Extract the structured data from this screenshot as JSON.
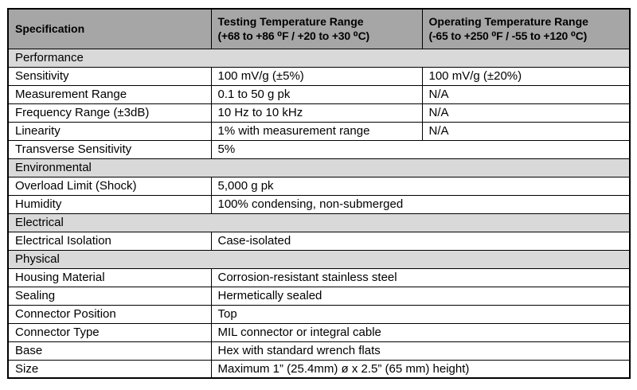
{
  "colors": {
    "header_bg": "#a6a6a6",
    "section_bg": "#d9d9d9",
    "border": "#000000",
    "text": "#000000",
    "page_bg": "#ffffff"
  },
  "table": {
    "header": [
      {
        "title": "Specification",
        "subtitle": ""
      },
      {
        "title": "Testing Temperature Range",
        "subtitle": "(+68 to +86 ⁰F / +20 to +30 ⁰C)"
      },
      {
        "title": "Operating Temperature Range",
        "subtitle": "(-65 to +250 ⁰F / -55 to +120 ⁰C)"
      }
    ],
    "sections": [
      {
        "name": "Performance",
        "rows": [
          {
            "spec": "Sensitivity",
            "values": [
              "100 mV/g (±5%)",
              "100 mV/g (±20%)"
            ]
          },
          {
            "spec": "Measurement Range",
            "values": [
              "0.1 to 50 g pk",
              "N/A"
            ]
          },
          {
            "spec": "Frequency Range (±3dB)",
            "values": [
              "10 Hz to 10 kHz",
              "N/A"
            ]
          },
          {
            "spec": "Linearity",
            "values": [
              "1% with measurement range",
              "N/A"
            ]
          },
          {
            "spec": "Transverse Sensitivity",
            "values": [
              "5%"
            ]
          }
        ]
      },
      {
        "name": "Environmental",
        "rows": [
          {
            "spec": "Overload Limit (Shock)",
            "values": [
              "5,000 g pk"
            ]
          },
          {
            "spec": "Humidity",
            "values": [
              "100% condensing, non-submerged"
            ]
          }
        ]
      },
      {
        "name": "Electrical",
        "rows": [
          {
            "spec": "Electrical Isolation",
            "values": [
              "Case-isolated"
            ]
          }
        ]
      },
      {
        "name": "Physical",
        "rows": [
          {
            "spec": "Housing Material",
            "values": [
              "Corrosion-resistant stainless steel"
            ]
          },
          {
            "spec": "Sealing",
            "values": [
              "Hermetically sealed"
            ]
          },
          {
            "spec": "Connector Position",
            "values": [
              "Top"
            ]
          },
          {
            "spec": "Connector Type",
            "values": [
              "MIL connector or integral cable"
            ]
          },
          {
            "spec": "Base",
            "values": [
              "Hex with standard wrench flats"
            ]
          },
          {
            "spec": "Size",
            "values": [
              "Maximum 1” (25.4mm) ø x 2.5” (65 mm) height)"
            ]
          }
        ]
      }
    ]
  }
}
